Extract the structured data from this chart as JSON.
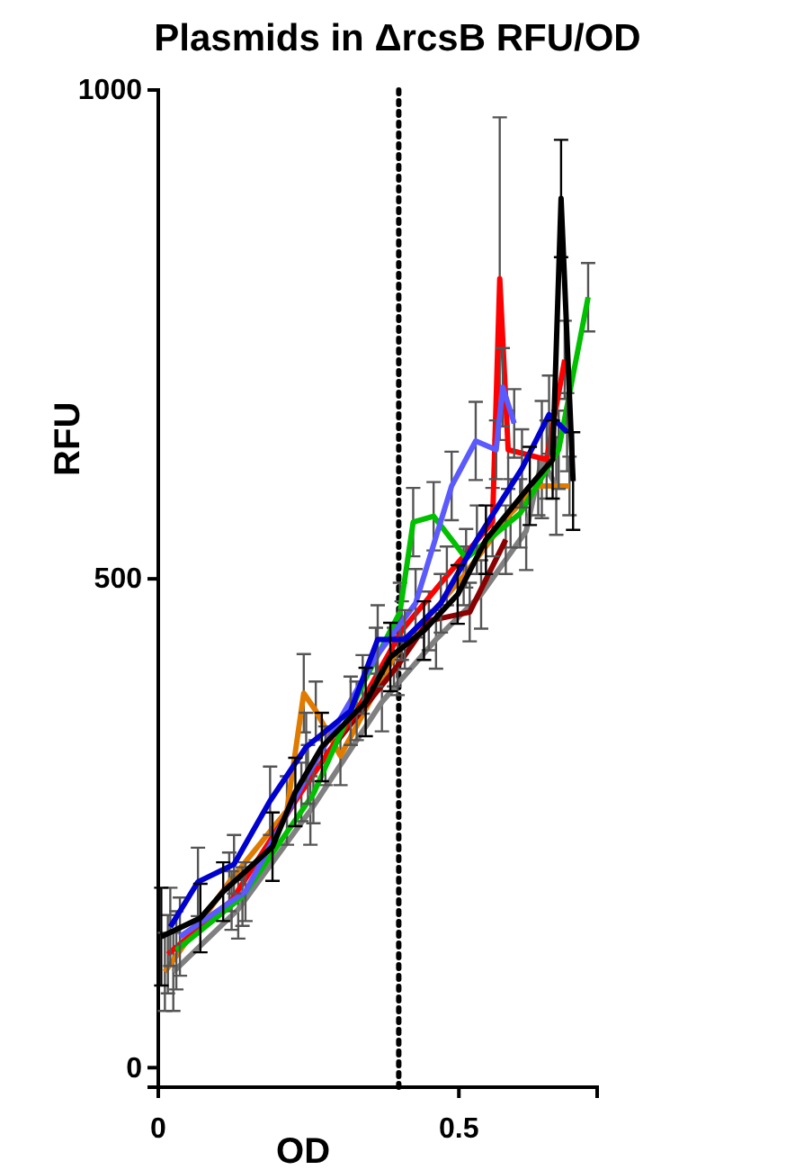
{
  "chart_data": {
    "type": "line",
    "title": "Plasmids in ΔrcsB RFU/OD",
    "xlabel": "OD",
    "ylabel": "RFU",
    "xlim": [
      0,
      0.73
    ],
    "ylim": [
      -20,
      1000
    ],
    "xticks": [
      0,
      0.5
    ],
    "yticks": [
      0,
      500,
      1000
    ],
    "grid": false,
    "marker": "none",
    "line_style": "solid",
    "ref_lines": [
      {
        "axis": "x",
        "value": 0.4,
        "color": "#000000",
        "line_style": "dotted"
      }
    ],
    "series": [
      {
        "color": "#808080",
        "x": [
          0.025,
          0.133,
          0.253,
          0.372,
          0.462,
          0.537,
          0.612,
          0.638,
          0.662
        ],
        "values": [
          98,
          162,
          263,
          374,
          438,
          484,
          549,
          622,
          595
        ],
        "errors": [
          40,
          30,
          35,
          30,
          30,
          35,
          40,
          60,
          50
        ]
      },
      {
        "color": "#e07b00",
        "x": [
          0.011,
          0.118,
          0.214,
          0.242,
          0.262,
          0.303,
          0.392,
          0.508,
          0.586,
          0.632,
          0.684
        ],
        "values": [
          98,
          190,
          263,
          383,
          365,
          319,
          420,
          503,
          567,
          595,
          595
        ],
        "errors": [
          40,
          30,
          35,
          40,
          30,
          30,
          30,
          30,
          35,
          30,
          30
        ]
      },
      {
        "color": "#8b0000",
        "x": [
          0.278,
          0.398,
          0.45,
          0.518,
          0.578
        ],
        "values": [
          319,
          411,
          457,
          466,
          540
        ],
        "errors": [
          30,
          30,
          30,
          30,
          35
        ]
      },
      {
        "color": "#ff0000",
        "x": [
          0.016,
          0.122,
          0.238,
          0.33,
          0.405,
          0.48,
          0.556,
          0.568,
          0.582,
          0.646,
          0.676
        ],
        "values": [
          116,
          171,
          282,
          365,
          447,
          503,
          558,
          807,
          632,
          622,
          724
        ],
        "errors": [
          40,
          30,
          30,
          30,
          30,
          30,
          35,
          165,
          40,
          40,
          40
        ]
      },
      {
        "color": "#00c000",
        "x": [
          0.03,
          0.14,
          0.258,
          0.34,
          0.402,
          0.424,
          0.458,
          0.512,
          0.602,
          0.666,
          0.715
        ],
        "values": [
          120,
          175,
          280,
          392,
          466,
          558,
          564,
          521,
          567,
          632,
          788
        ],
        "errors": [
          40,
          30,
          30,
          30,
          30,
          35,
          35,
          30,
          35,
          40,
          35
        ]
      },
      {
        "color": "#5a5aff",
        "x": [
          0.036,
          0.145,
          0.249,
          0.362,
          0.428,
          0.488,
          0.528,
          0.562,
          0.573,
          0.592
        ],
        "values": [
          134,
          180,
          300,
          420,
          475,
          595,
          641,
          632,
          696,
          659
        ],
        "errors": [
          40,
          30,
          30,
          30,
          35,
          35,
          40,
          30,
          40,
          35
        ]
      },
      {
        "color": "#0000d0",
        "x": [
          0.02,
          0.066,
          0.126,
          0.186,
          0.246,
          0.32,
          0.365,
          0.41,
          0.47,
          0.53,
          0.605,
          0.65,
          0.68
        ],
        "values": [
          144,
          190,
          208,
          273,
          328,
          365,
          438,
          438,
          475,
          540,
          613,
          668,
          650
        ],
        "errors": [
          40,
          35,
          30,
          35,
          35,
          35,
          35,
          30,
          30,
          35,
          40,
          40,
          40
        ]
      },
      {
        "color": "#000000",
        "x": [
          0.005,
          0.07,
          0.108,
          0.19,
          0.228,
          0.272,
          0.345,
          0.386,
          0.442,
          0.498,
          0.545,
          0.618,
          0.656,
          0.67,
          0.69
        ],
        "values": [
          134,
          153,
          180,
          226,
          282,
          328,
          374,
          420,
          447,
          484,
          540,
          595,
          622,
          889,
          600
        ],
        "errors": [
          50,
          35,
          30,
          35,
          35,
          35,
          35,
          35,
          30,
          30,
          35,
          40,
          40,
          60,
          50
        ]
      }
    ]
  }
}
